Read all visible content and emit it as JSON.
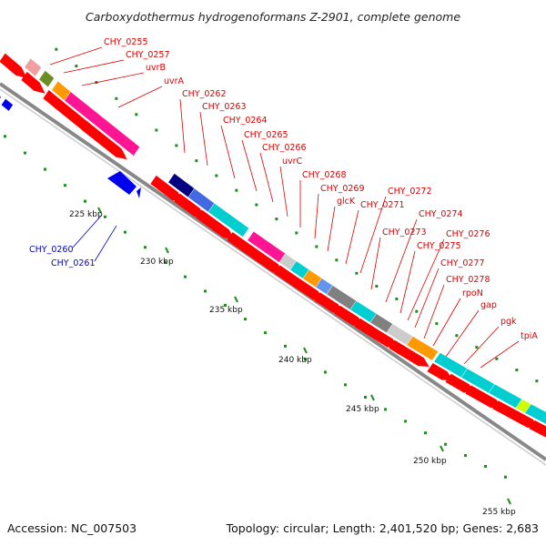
{
  "title": "Carboxydothermus hydrogenoformans Z-2901, complete genome",
  "footer": {
    "accession": "Accession: NC_007503",
    "summary": "Topology: circular; Length: 2,401,520 bp; Genes: 2,683"
  },
  "colors": {
    "forward_cds": "#ff0000",
    "reverse_cds": "#0000ee",
    "label_red": "#dd0000",
    "label_blue": "#0000cc",
    "backbone": "#888888",
    "ticks": "#228b22"
  },
  "kbp_labels": [
    "225 kbp",
    "230 kbp",
    "235 kbp",
    "240 kbp",
    "245 kbp",
    "250 kbp",
    "255 kbp"
  ],
  "gene_labels": {
    "forward": [
      "CHY_0255",
      "CHY_0257",
      "uvrB",
      "uvrA",
      "CHY_0262",
      "CHY_0263",
      "CHY_0264",
      "CHY_0265",
      "CHY_0266",
      "uvrC",
      "CHY_0268",
      "CHY_0269",
      "glcK",
      "CHY_0271",
      "CHY_0272",
      "CHY_0273",
      "CHY_0274",
      "CHY_0275",
      "CHY_0276",
      "CHY_0277",
      "CHY_0278",
      "rpoN",
      "gap",
      "pgk",
      "tpiA"
    ],
    "reverse": [
      "CHY_0260",
      "CHY_0261"
    ]
  }
}
